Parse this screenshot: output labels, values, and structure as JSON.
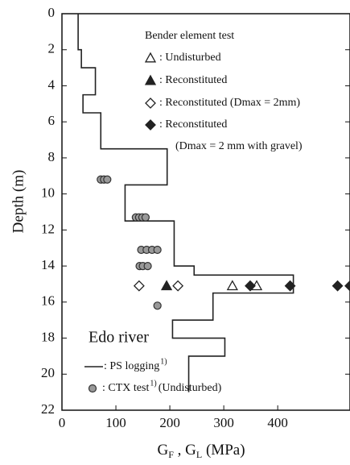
{
  "chart_data": {
    "type": "profile",
    "x_label": [
      "G",
      "F",
      " ,  G",
      "L",
      "  (MPa)"
    ],
    "y_label": "Depth  (m)",
    "legend_title": "Bender element test",
    "annotation": "Edo river",
    "xlim": [
      0,
      534
    ],
    "xticks": [
      0,
      100,
      200,
      300,
      400
    ],
    "ylim": [
      0,
      22
    ],
    "yticks": [
      0,
      2,
      4,
      6,
      8,
      10,
      12,
      14,
      16,
      18,
      20,
      22
    ],
    "y_inverted": true,
    "series": [
      {
        "name": ": PS logging",
        "footnote": "1)",
        "kind": "line",
        "color": "#222",
        "x": [
          30,
          30,
          36,
          36,
          62,
          62,
          39,
          39,
          72,
          72,
          195,
          195,
          117,
          117,
          208,
          208,
          245,
          245,
          429,
          429,
          280,
          280,
          205,
          205,
          302,
          302,
          235,
          235
        ],
        "y": [
          0,
          2,
          2,
          3,
          3,
          4.5,
          4.5,
          5.5,
          5.5,
          7.5,
          7.5,
          9.5,
          9.5,
          11.5,
          11.5,
          14,
          14,
          14.5,
          14.5,
          15.5,
          15.5,
          17,
          17,
          18,
          18,
          19,
          19,
          21
        ]
      },
      {
        "name": ": CTX test",
        "footnote": "1)",
        "note": "(Undisturbed)",
        "kind": "ring",
        "color": "#777",
        "x": [
          72,
          78,
          84,
          137,
          143,
          149,
          155,
          147,
          157,
          167,
          177,
          144,
          150,
          159,
          177
        ],
        "y": [
          9.2,
          9.2,
          9.2,
          11.3,
          11.3,
          11.3,
          11.3,
          13.1,
          13.1,
          13.1,
          13.1,
          14.0,
          14.0,
          14.0,
          16.2
        ]
      },
      {
        "name": ": Undisturbed",
        "kind": "tri-open",
        "color": "#222",
        "x": [
          316,
          361
        ],
        "y": [
          15.1,
          15.1
        ]
      },
      {
        "name": ": Reconstituted",
        "kind": "tri-filled",
        "color": "#222",
        "x": [
          194
        ],
        "y": [
          15.1
        ]
      },
      {
        "name": ": Reconstituted (Dmax = 2mm)",
        "kind": "dia-open",
        "color": "#222",
        "x": [
          143,
          215
        ],
        "y": [
          15.1,
          15.1
        ]
      },
      {
        "name": ": Reconstituted",
        "note": "(Dmax = 2 mm with gravel)",
        "kind": "dia-filled",
        "color": "#222",
        "x": [
          349,
          423,
          511,
          534
        ],
        "y": [
          15.1,
          15.1,
          15.1,
          15.1
        ]
      }
    ]
  }
}
